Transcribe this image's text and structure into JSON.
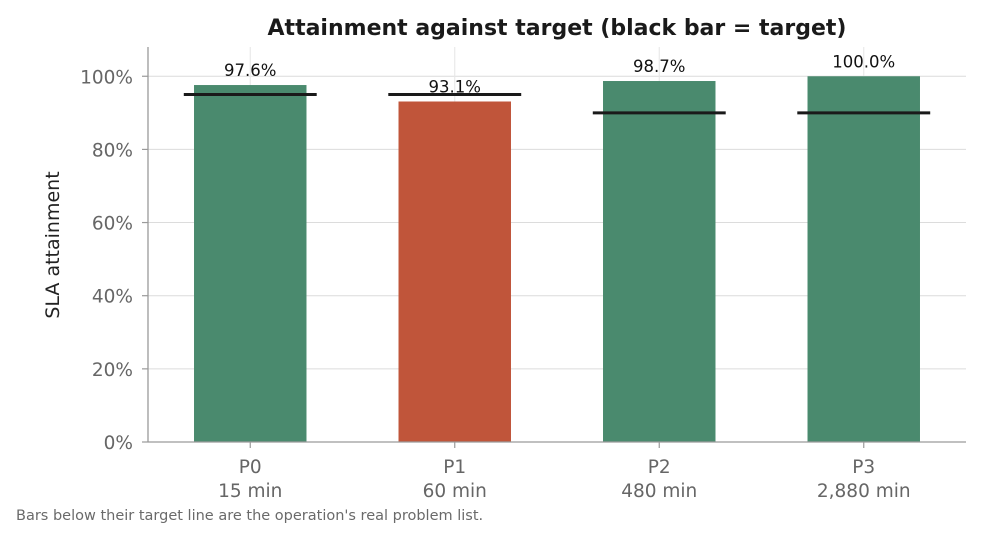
{
  "chart_data": {
    "type": "bar",
    "title": "Attainment against target (black bar = target)",
    "ylabel": "SLA attainment",
    "xlabel": "",
    "ylim": [
      0,
      108
    ],
    "yticks": [
      0,
      20,
      40,
      60,
      80,
      100
    ],
    "ytick_labels": [
      "0%",
      "20%",
      "40%",
      "60%",
      "80%",
      "100%"
    ],
    "grid": true,
    "categories": [
      "P0",
      "P1",
      "P2",
      "P3"
    ],
    "category_sublabels": [
      "15 min",
      "60 min",
      "480 min",
      "2,880 min"
    ],
    "values": [
      97.6,
      93.1,
      98.7,
      100.0
    ],
    "value_labels": [
      "97.6%",
      "93.1%",
      "98.7%",
      "100.0%"
    ],
    "targets": [
      95,
      95,
      90,
      90
    ],
    "bar_colors": [
      "#4a8a6e",
      "#c0553a",
      "#4a8a6e",
      "#4a8a6e"
    ],
    "target_color": "#1a1a1a"
  },
  "footnote": "Bars below their target line are the operation's real problem list."
}
